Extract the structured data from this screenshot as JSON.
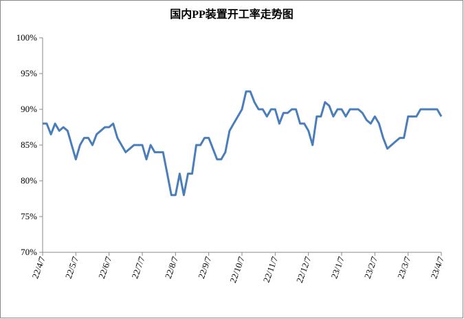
{
  "chart_data": {
    "type": "line",
    "title": "国内PP装置开工率走势图",
    "categories": [
      "22/4/7",
      null,
      null,
      null,
      null,
      null,
      null,
      null,
      "22/5/7",
      null,
      null,
      null,
      null,
      null,
      null,
      null,
      "22/6/7",
      null,
      null,
      null,
      null,
      null,
      null,
      null,
      "22/7/7",
      null,
      null,
      null,
      null,
      null,
      null,
      null,
      "22/8/7",
      null,
      null,
      null,
      null,
      null,
      null,
      null,
      "22/9/7",
      null,
      null,
      null,
      null,
      null,
      null,
      null,
      "22/10/7",
      null,
      null,
      null,
      null,
      null,
      null,
      null,
      "22/11/7",
      null,
      null,
      null,
      null,
      null,
      null,
      null,
      "22/12/7",
      null,
      null,
      null,
      null,
      null,
      null,
      null,
      "23/1/7",
      null,
      null,
      null,
      null,
      null,
      null,
      null,
      "23/2/7",
      null,
      null,
      null,
      null,
      null,
      null,
      null,
      "23/3/7",
      null,
      null,
      null,
      null,
      null,
      null,
      null,
      "23/4/7"
    ],
    "series": [
      {
        "color": "#4a7ebb",
        "values": [
          88,
          88,
          86.5,
          88,
          87,
          87.5,
          87,
          85,
          83,
          85,
          86,
          86,
          85,
          86.5,
          87,
          87.5,
          87.5,
          88,
          86,
          85,
          84,
          84.5,
          85,
          85,
          85,
          83,
          85,
          84,
          84,
          84,
          81,
          78,
          78,
          81,
          78,
          81,
          81,
          85,
          85,
          86,
          86,
          84.5,
          83,
          83,
          84,
          87,
          88,
          89,
          90,
          92.5,
          92.5,
          91,
          90,
          90,
          89,
          90,
          90,
          88,
          89.5,
          89.5,
          90,
          90,
          88,
          88,
          87,
          85,
          89,
          89,
          91,
          90.5,
          89,
          90,
          90,
          89,
          90,
          90,
          90,
          89.5,
          88.5,
          88,
          89,
          88,
          86,
          84.5,
          85,
          85.5,
          86,
          86,
          89,
          89,
          89,
          90,
          90,
          90,
          90,
          90,
          89
        ]
      }
    ],
    "ylim": [
      70,
      100
    ],
    "yticks": [
      {
        "value": 70,
        "label": "70%"
      },
      {
        "value": 75,
        "label": "75%"
      },
      {
        "value": 80,
        "label": "80%"
      },
      {
        "value": 85,
        "label": "85%"
      },
      {
        "value": 90,
        "label": "90%"
      },
      {
        "value": 95,
        "label": "95%"
      },
      {
        "value": 100,
        "label": "100%"
      }
    ]
  }
}
